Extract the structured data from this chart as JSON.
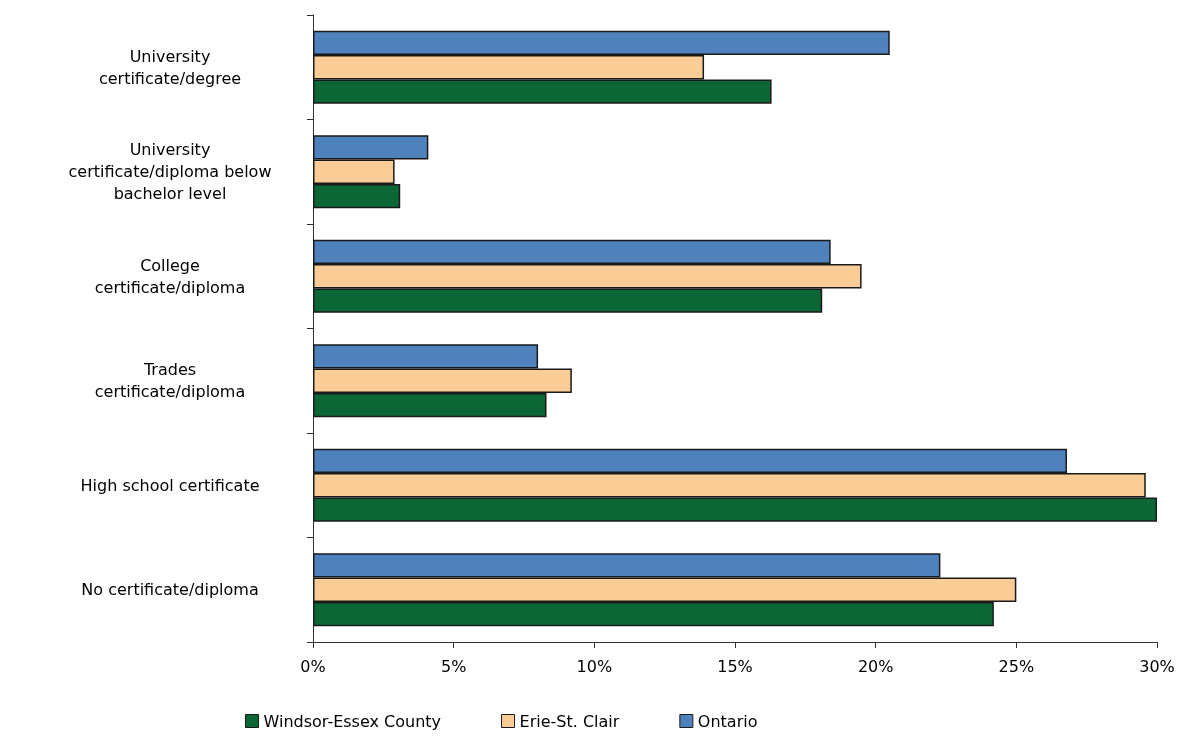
{
  "chart_data": {
    "type": "bar",
    "orientation": "horizontal",
    "categories": [
      "University\ncertificate/degree",
      "University\ncertificate/diploma below\nbachelor level",
      "College\ncertificate/diploma",
      "Trades\ncertificate/diploma",
      "High school certificate",
      "No certificate/diploma"
    ],
    "series": [
      {
        "name": "Windsor-Essex County",
        "color": "#0b6836",
        "values": [
          16.3,
          3.1,
          18.1,
          8.3,
          30.0,
          24.2
        ]
      },
      {
        "name": "Erie-St. Clair",
        "color": "#f9cd95",
        "values": [
          13.9,
          2.9,
          19.5,
          9.2,
          29.6,
          25.0
        ]
      },
      {
        "name": "Ontario",
        "color": "#4f81bd",
        "values": [
          20.5,
          4.1,
          18.4,
          8.0,
          26.8,
          22.3
        ]
      }
    ],
    "xlim": [
      0,
      30
    ],
    "xticks": [
      {
        "value": 0,
        "label": "0%"
      },
      {
        "value": 5,
        "label": "5%"
      },
      {
        "value": 10,
        "label": "10%"
      },
      {
        "value": 15,
        "label": "15%"
      },
      {
        "value": 20,
        "label": "20%"
      },
      {
        "value": 25,
        "label": "25%"
      },
      {
        "value": 30,
        "label": "30%"
      }
    ],
    "grid": false,
    "legend": "bottom"
  }
}
